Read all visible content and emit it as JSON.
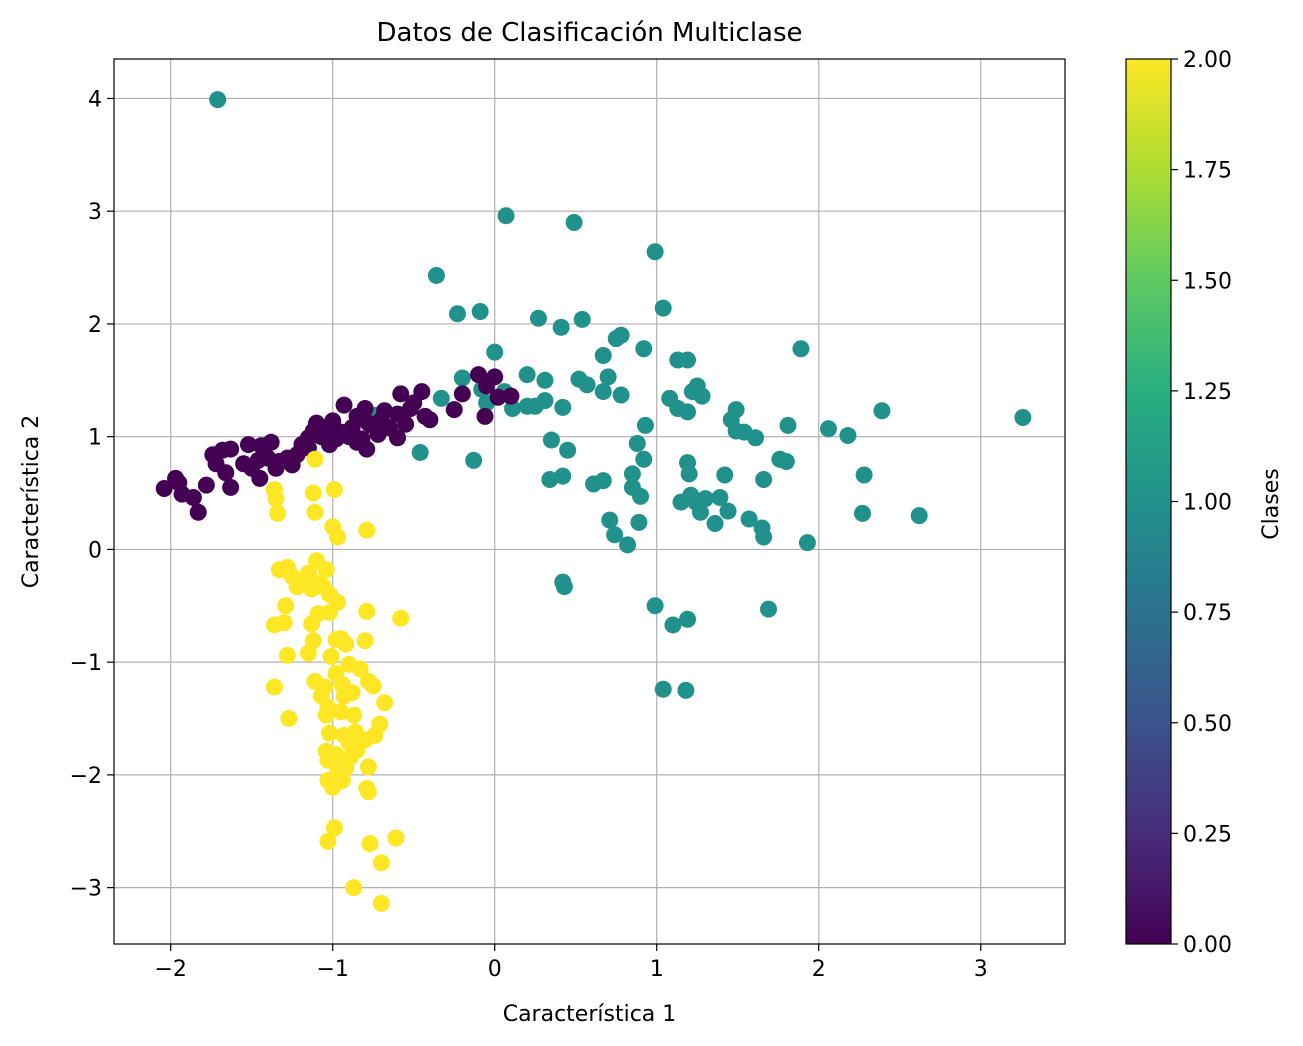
{
  "chart_data": {
    "type": "scatter",
    "title": "Datos de Clasificación Multiclase",
    "xlabel": "Característica 1",
    "ylabel": "Característica 2",
    "xlim": [
      -2.35,
      3.52
    ],
    "ylim": [
      -3.5,
      4.35
    ],
    "grid": true,
    "xticks": [
      -2,
      -1,
      0,
      1,
      2,
      3
    ],
    "xtick_labels": [
      "−2",
      "−1",
      "0",
      "1",
      "2",
      "3"
    ],
    "yticks": [
      -3,
      -2,
      -1,
      0,
      1,
      2,
      3,
      4
    ],
    "ytick_labels": [
      "−3",
      "−2",
      "−1",
      "0",
      "1",
      "2",
      "3",
      "4"
    ],
    "colorbar": {
      "label": "Clases",
      "range": [
        0,
        2
      ],
      "ticks": [
        0,
        0.25,
        0.5,
        0.75,
        1,
        1.25,
        1.5,
        1.75,
        2
      ],
      "tick_labels": [
        "0.00",
        "0.25",
        "0.50",
        "0.75",
        "1.00",
        "1.25",
        "1.50",
        "1.75",
        "2.00"
      ],
      "colormap": "viridis"
    },
    "class_colors": {
      "0": "#440154",
      "1": "#21918c",
      "2": "#fde725"
    },
    "series": [
      {
        "class": 1,
        "points": [
          [
            -1.71,
            3.99
          ],
          [
            0.07,
            2.96
          ],
          [
            0.49,
            2.9
          ],
          [
            0.99,
            2.64
          ],
          [
            -0.36,
            2.43
          ],
          [
            1.04,
            2.14
          ],
          [
            -0.23,
            2.09
          ],
          [
            -0.09,
            2.11
          ],
          [
            0.27,
            2.05
          ],
          [
            0.54,
            2.04
          ],
          [
            0.41,
            1.97
          ],
          [
            0.78,
            1.9
          ],
          [
            0.75,
            1.87
          ],
          [
            0.92,
            1.78
          ],
          [
            0.67,
            1.72
          ],
          [
            0.0,
            1.75
          ],
          [
            1.89,
            1.78
          ],
          [
            1.13,
            1.68
          ],
          [
            1.19,
            1.68
          ],
          [
            -0.2,
            1.52
          ],
          [
            0.2,
            1.55
          ],
          [
            0.31,
            1.5
          ],
          [
            0.52,
            1.51
          ],
          [
            0.57,
            1.46
          ],
          [
            0.7,
            1.53
          ],
          [
            -0.08,
            1.42
          ],
          [
            0.06,
            1.4
          ],
          [
            0.67,
            1.4
          ],
          [
            0.78,
            1.37
          ],
          [
            1.22,
            1.4
          ],
          [
            1.25,
            1.45
          ],
          [
            1.28,
            1.36
          ],
          [
            -0.33,
            1.34
          ],
          [
            -0.05,
            1.3
          ],
          [
            0.11,
            1.25
          ],
          [
            0.2,
            1.27
          ],
          [
            0.25,
            1.27
          ],
          [
            0.31,
            1.32
          ],
          [
            0.42,
            1.26
          ],
          [
            1.08,
            1.34
          ],
          [
            1.13,
            1.25
          ],
          [
            1.19,
            1.22
          ],
          [
            1.49,
            1.24
          ],
          [
            1.46,
            1.15
          ],
          [
            1.49,
            1.05
          ],
          [
            1.54,
            1.04
          ],
          [
            1.61,
            0.99
          ],
          [
            0.93,
            1.1
          ],
          [
            1.81,
            1.1
          ],
          [
            2.06,
            1.07
          ],
          [
            2.18,
            1.01
          ],
          [
            2.39,
            1.23
          ],
          [
            3.26,
            1.17
          ],
          [
            -0.73,
            1.19
          ],
          [
            -0.46,
            0.86
          ],
          [
            -0.13,
            0.79
          ],
          [
            0.35,
            0.97
          ],
          [
            0.45,
            0.88
          ],
          [
            0.88,
            0.94
          ],
          [
            0.92,
            0.8
          ],
          [
            1.19,
            0.77
          ],
          [
            1.2,
            0.67
          ],
          [
            1.42,
            0.66
          ],
          [
            1.76,
            0.8
          ],
          [
            1.8,
            0.78
          ],
          [
            0.85,
            0.67
          ],
          [
            0.42,
            0.65
          ],
          [
            0.34,
            0.62
          ],
          [
            0.61,
            0.58
          ],
          [
            0.67,
            0.61
          ],
          [
            0.85,
            0.55
          ],
          [
            0.9,
            0.47
          ],
          [
            1.66,
            0.62
          ],
          [
            1.15,
            0.42
          ],
          [
            1.21,
            0.48
          ],
          [
            1.24,
            0.42
          ],
          [
            1.27,
            0.33
          ],
          [
            1.3,
            0.45
          ],
          [
            1.39,
            0.46
          ],
          [
            1.44,
            0.34
          ],
          [
            1.36,
            0.23
          ],
          [
            1.57,
            0.27
          ],
          [
            1.65,
            0.19
          ],
          [
            1.66,
            0.11
          ],
          [
            0.71,
            0.26
          ],
          [
            0.74,
            0.13
          ],
          [
            0.82,
            0.04
          ],
          [
            0.89,
            0.24
          ],
          [
            2.28,
            0.66
          ],
          [
            2.27,
            0.32
          ],
          [
            2.62,
            0.3
          ],
          [
            1.93,
            0.06
          ],
          [
            0.42,
            -0.29
          ],
          [
            0.43,
            -0.33
          ],
          [
            0.99,
            -0.5
          ],
          [
            1.1,
            -0.67
          ],
          [
            1.19,
            -0.62
          ],
          [
            1.69,
            -0.53
          ],
          [
            1.04,
            -1.24
          ],
          [
            1.18,
            -1.25
          ]
        ]
      },
      {
        "class": 0,
        "points": [
          [
            -2.04,
            0.54
          ],
          [
            -1.97,
            0.63
          ],
          [
            -1.95,
            0.59
          ],
          [
            -1.93,
            0.49
          ],
          [
            -1.86,
            0.46
          ],
          [
            -1.83,
            0.33
          ],
          [
            -1.78,
            0.57
          ],
          [
            -1.74,
            0.84
          ],
          [
            -1.72,
            0.76
          ],
          [
            -1.68,
            0.88
          ],
          [
            -1.66,
            0.68
          ],
          [
            -1.63,
            0.55
          ],
          [
            -1.63,
            0.89
          ],
          [
            -1.55,
            0.76
          ],
          [
            -1.52,
            0.93
          ],
          [
            -1.5,
            0.72
          ],
          [
            -1.46,
            0.79
          ],
          [
            -1.45,
            0.63
          ],
          [
            -1.44,
            0.92
          ],
          [
            -1.4,
            0.81
          ],
          [
            -1.38,
            0.95
          ],
          [
            -1.35,
            0.72
          ],
          [
            -1.33,
            0.78
          ],
          [
            -1.28,
            0.81
          ],
          [
            -1.25,
            0.75
          ],
          [
            -1.22,
            0.84
          ],
          [
            -1.19,
            0.93
          ],
          [
            -1.15,
            0.99
          ],
          [
            -1.12,
            1.05
          ],
          [
            -1.1,
            1.12
          ],
          [
            -1.07,
            1.0
          ],
          [
            -1.04,
            1.08
          ],
          [
            -1.02,
            0.93
          ],
          [
            -1.0,
            1.14
          ],
          [
            -0.98,
            0.98
          ],
          [
            -0.95,
            1.04
          ],
          [
            -0.93,
            1.28
          ],
          [
            -0.9,
            1.0
          ],
          [
            -0.88,
            1.08
          ],
          [
            -0.85,
            1.18
          ],
          [
            -0.82,
            0.98
          ],
          [
            -0.8,
            1.25
          ],
          [
            -0.79,
            0.89
          ],
          [
            -0.76,
            1.1
          ],
          [
            -0.72,
            1.02
          ],
          [
            -0.7,
            1.15
          ],
          [
            -0.68,
            1.23
          ],
          [
            -0.65,
            1.08
          ],
          [
            -0.6,
            1.2
          ],
          [
            -0.58,
            1.38
          ],
          [
            -0.55,
            1.11
          ],
          [
            -0.52,
            1.25
          ],
          [
            -0.5,
            1.3
          ],
          [
            -0.45,
            1.4
          ],
          [
            -0.43,
            1.18
          ],
          [
            -0.4,
            1.15
          ],
          [
            -0.25,
            1.24
          ],
          [
            -0.2,
            1.38
          ],
          [
            -0.1,
            1.55
          ],
          [
            -0.05,
            1.45
          ],
          [
            0.0,
            1.53
          ],
          [
            0.02,
            1.35
          ],
          [
            0.1,
            1.36
          ],
          [
            -0.06,
            1.18
          ],
          [
            -0.95,
            1.01
          ],
          [
            -1.15,
            0.9
          ],
          [
            -0.6,
            0.99
          ],
          [
            -0.78,
            1.12
          ],
          [
            -1.0,
            1.05
          ],
          [
            -0.85,
            0.95
          ]
        ]
      },
      {
        "class": 2,
        "points": [
          [
            -1.11,
            0.8
          ],
          [
            -1.36,
            0.53
          ],
          [
            -1.35,
            0.45
          ],
          [
            -1.34,
            0.32
          ],
          [
            -1.12,
            0.5
          ],
          [
            -1.11,
            0.33
          ],
          [
            -0.99,
            0.53
          ],
          [
            -1.0,
            0.2
          ],
          [
            -0.97,
            0.11
          ],
          [
            -0.79,
            0.17
          ],
          [
            -0.58,
            -0.61
          ],
          [
            -1.33,
            -0.18
          ],
          [
            -1.28,
            -0.16
          ],
          [
            -1.25,
            -0.24
          ],
          [
            -1.22,
            -0.33
          ],
          [
            -1.19,
            -0.29
          ],
          [
            -1.15,
            -0.21
          ],
          [
            -1.13,
            -0.35
          ],
          [
            -1.1,
            -0.1
          ],
          [
            -1.08,
            -0.3
          ],
          [
            -1.06,
            -0.33
          ],
          [
            -1.04,
            -0.18
          ],
          [
            -1.02,
            -0.4
          ],
          [
            -0.97,
            -0.47
          ],
          [
            -0.79,
            -0.55
          ],
          [
            -1.29,
            -0.5
          ],
          [
            -1.3,
            -0.65
          ],
          [
            -1.36,
            -0.67
          ],
          [
            -1.13,
            -0.66
          ],
          [
            -1.09,
            -0.57
          ],
          [
            -1.02,
            -0.56
          ],
          [
            -0.98,
            -0.8
          ],
          [
            -0.95,
            -0.79
          ],
          [
            -0.92,
            -0.84
          ],
          [
            -1.12,
            -0.81
          ],
          [
            -1.15,
            -0.92
          ],
          [
            -1.28,
            -0.94
          ],
          [
            -0.8,
            -0.81
          ],
          [
            -1.01,
            -0.95
          ],
          [
            -0.9,
            -1.02
          ],
          [
            -0.98,
            -1.1
          ],
          [
            -0.94,
            -1.2
          ],
          [
            -0.83,
            -1.06
          ],
          [
            -1.11,
            -1.17
          ],
          [
            -1.05,
            -1.22
          ],
          [
            -1.07,
            -1.3
          ],
          [
            -1.03,
            -1.4
          ],
          [
            -0.93,
            -1.3
          ],
          [
            -0.88,
            -1.27
          ],
          [
            -0.78,
            -1.17
          ],
          [
            -0.75,
            -1.21
          ],
          [
            -0.68,
            -1.36
          ],
          [
            -1.36,
            -1.22
          ],
          [
            -1.27,
            -1.5
          ],
          [
            -1.04,
            -1.47
          ],
          [
            -0.95,
            -1.44
          ],
          [
            -0.87,
            -1.47
          ],
          [
            -0.71,
            -1.55
          ],
          [
            -0.74,
            -1.65
          ],
          [
            -0.8,
            -1.69
          ],
          [
            -0.93,
            -1.65
          ],
          [
            -1.02,
            -1.63
          ],
          [
            -1.04,
            -1.79
          ],
          [
            -0.98,
            -1.82
          ],
          [
            -0.89,
            -1.84
          ],
          [
            -0.92,
            -1.94
          ],
          [
            -0.97,
            -1.97
          ],
          [
            -1.03,
            -1.87
          ],
          [
            -0.85,
            -1.78
          ],
          [
            -0.78,
            -1.93
          ],
          [
            -0.79,
            -2.12
          ],
          [
            -0.78,
            -2.15
          ],
          [
            -0.94,
            -2.05
          ],
          [
            -1.03,
            -2.05
          ],
          [
            -1.0,
            -2.11
          ],
          [
            -0.99,
            -2.47
          ],
          [
            -1.03,
            -2.59
          ],
          [
            -0.77,
            -2.61
          ],
          [
            -0.61,
            -2.56
          ],
          [
            -0.7,
            -2.78
          ],
          [
            -0.87,
            -3.0
          ],
          [
            -0.7,
            -3.14
          ],
          [
            -0.9,
            -1.71
          ],
          [
            -0.86,
            -1.62
          ]
        ]
      }
    ]
  }
}
